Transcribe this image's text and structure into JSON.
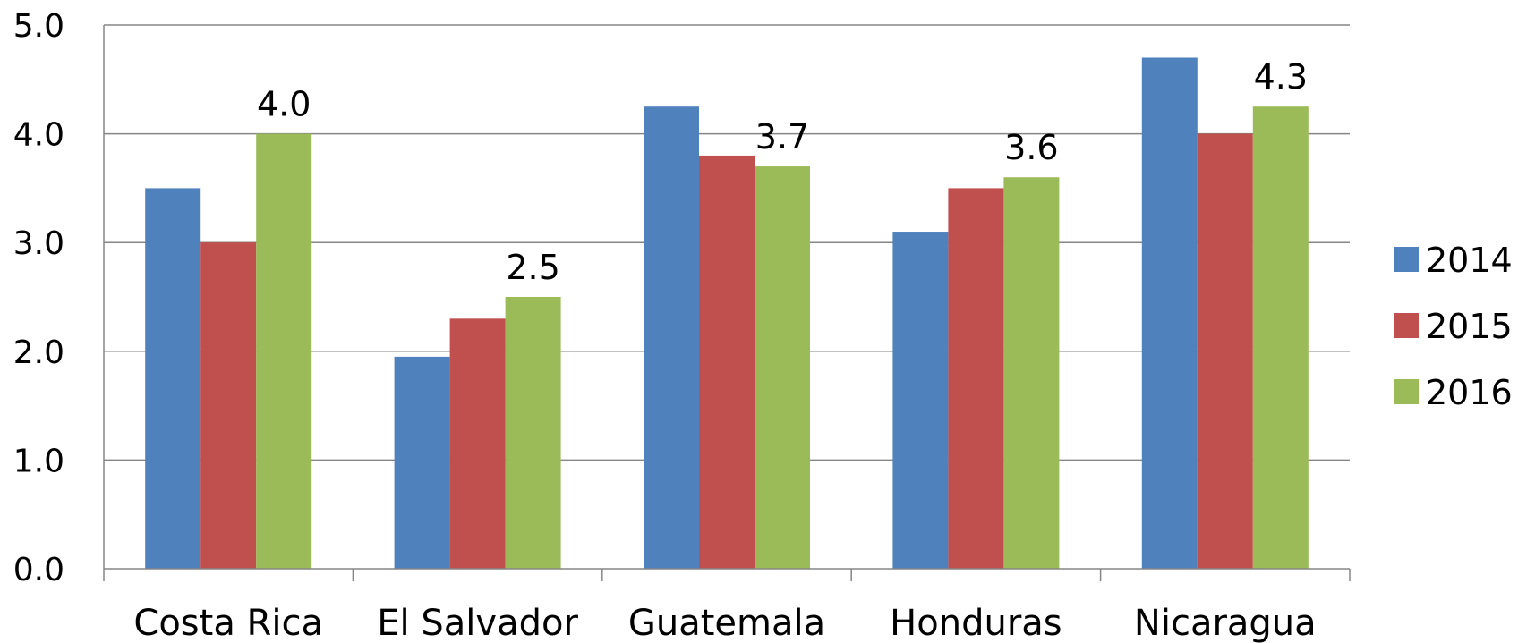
{
  "chart_data": {
    "type": "bar",
    "title": "",
    "xlabel": "",
    "ylabel": "",
    "categories": [
      "Costa Rica",
      "El Salvador",
      "Guatemala",
      "Honduras",
      "Nicaragua"
    ],
    "series": [
      {
        "name": "2014",
        "color": "#4F81BD",
        "values": [
          3.5,
          1.95,
          4.25,
          3.1,
          4.7
        ]
      },
      {
        "name": "2015",
        "color": "#C0504D",
        "values": [
          3.0,
          2.3,
          3.8,
          3.5,
          4.0
        ]
      },
      {
        "name": "2016",
        "color": "#9BBB59",
        "values": [
          4.0,
          2.5,
          3.7,
          3.6,
          4.25
        ]
      }
    ],
    "data_labels": {
      "series": "2016",
      "texts": [
        "4.0",
        "2.5",
        "3.7",
        "3.6",
        "4.3"
      ]
    },
    "ylim": [
      0,
      5
    ],
    "yticks": [
      "0.0",
      "1.0",
      "2.0",
      "3.0",
      "4.0",
      "5.0"
    ],
    "grid": true,
    "legend_position": "right"
  }
}
